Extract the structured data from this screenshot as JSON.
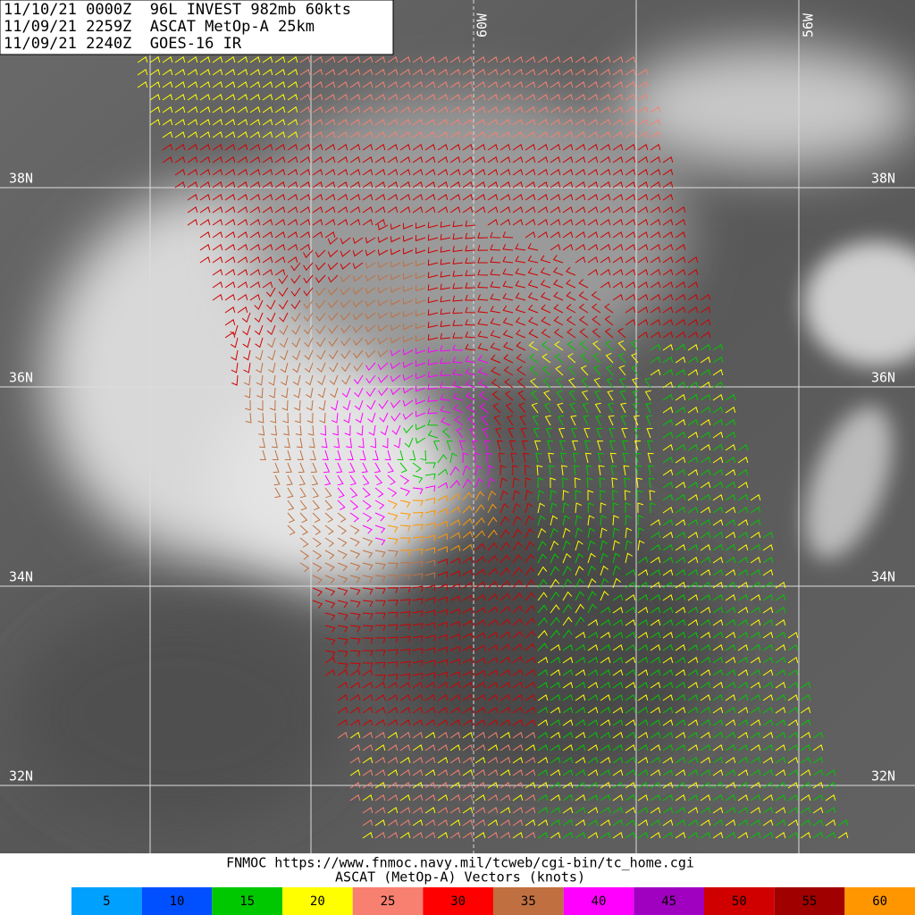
{
  "header": {
    "lines": [
      "11/10/21 0000Z  96L INVEST 982mb 60kts",
      "11/09/21 2259Z  ASCAT MetOp-A 25km",
      "11/09/21 2240Z  GOES-16 IR"
    ]
  },
  "map": {
    "lat_labels": [
      "38N",
      "36N",
      "34N",
      "32N"
    ],
    "lon_labels": [
      "60W",
      "56W"
    ]
  },
  "footer": {
    "lines": [
      "FNMOC https://www.fnmoc.navy.mil/tcweb/cgi-bin/tc_home.cgi",
      "ASCAT (MetOp-A) Vectors (knots)"
    ]
  },
  "legend": {
    "items": [
      {
        "label": "5",
        "color": "#00a0ff"
      },
      {
        "label": "10",
        "color": "#0050ff"
      },
      {
        "label": "15",
        "color": "#00c800"
      },
      {
        "label": "20",
        "color": "#ffff00"
      },
      {
        "label": "25",
        "color": "#f88070"
      },
      {
        "label": "30",
        "color": "#ff0000"
      },
      {
        "label": "35",
        "color": "#c07040"
      },
      {
        "label": "40",
        "color": "#ff00ff"
      },
      {
        "label": "45",
        "color": "#a000c0"
      },
      {
        "label": "50",
        "color": "#d00000"
      },
      {
        "label": "55",
        "color": "#a00000"
      },
      {
        "label": "60",
        "color": "#ff9600"
      }
    ]
  }
}
